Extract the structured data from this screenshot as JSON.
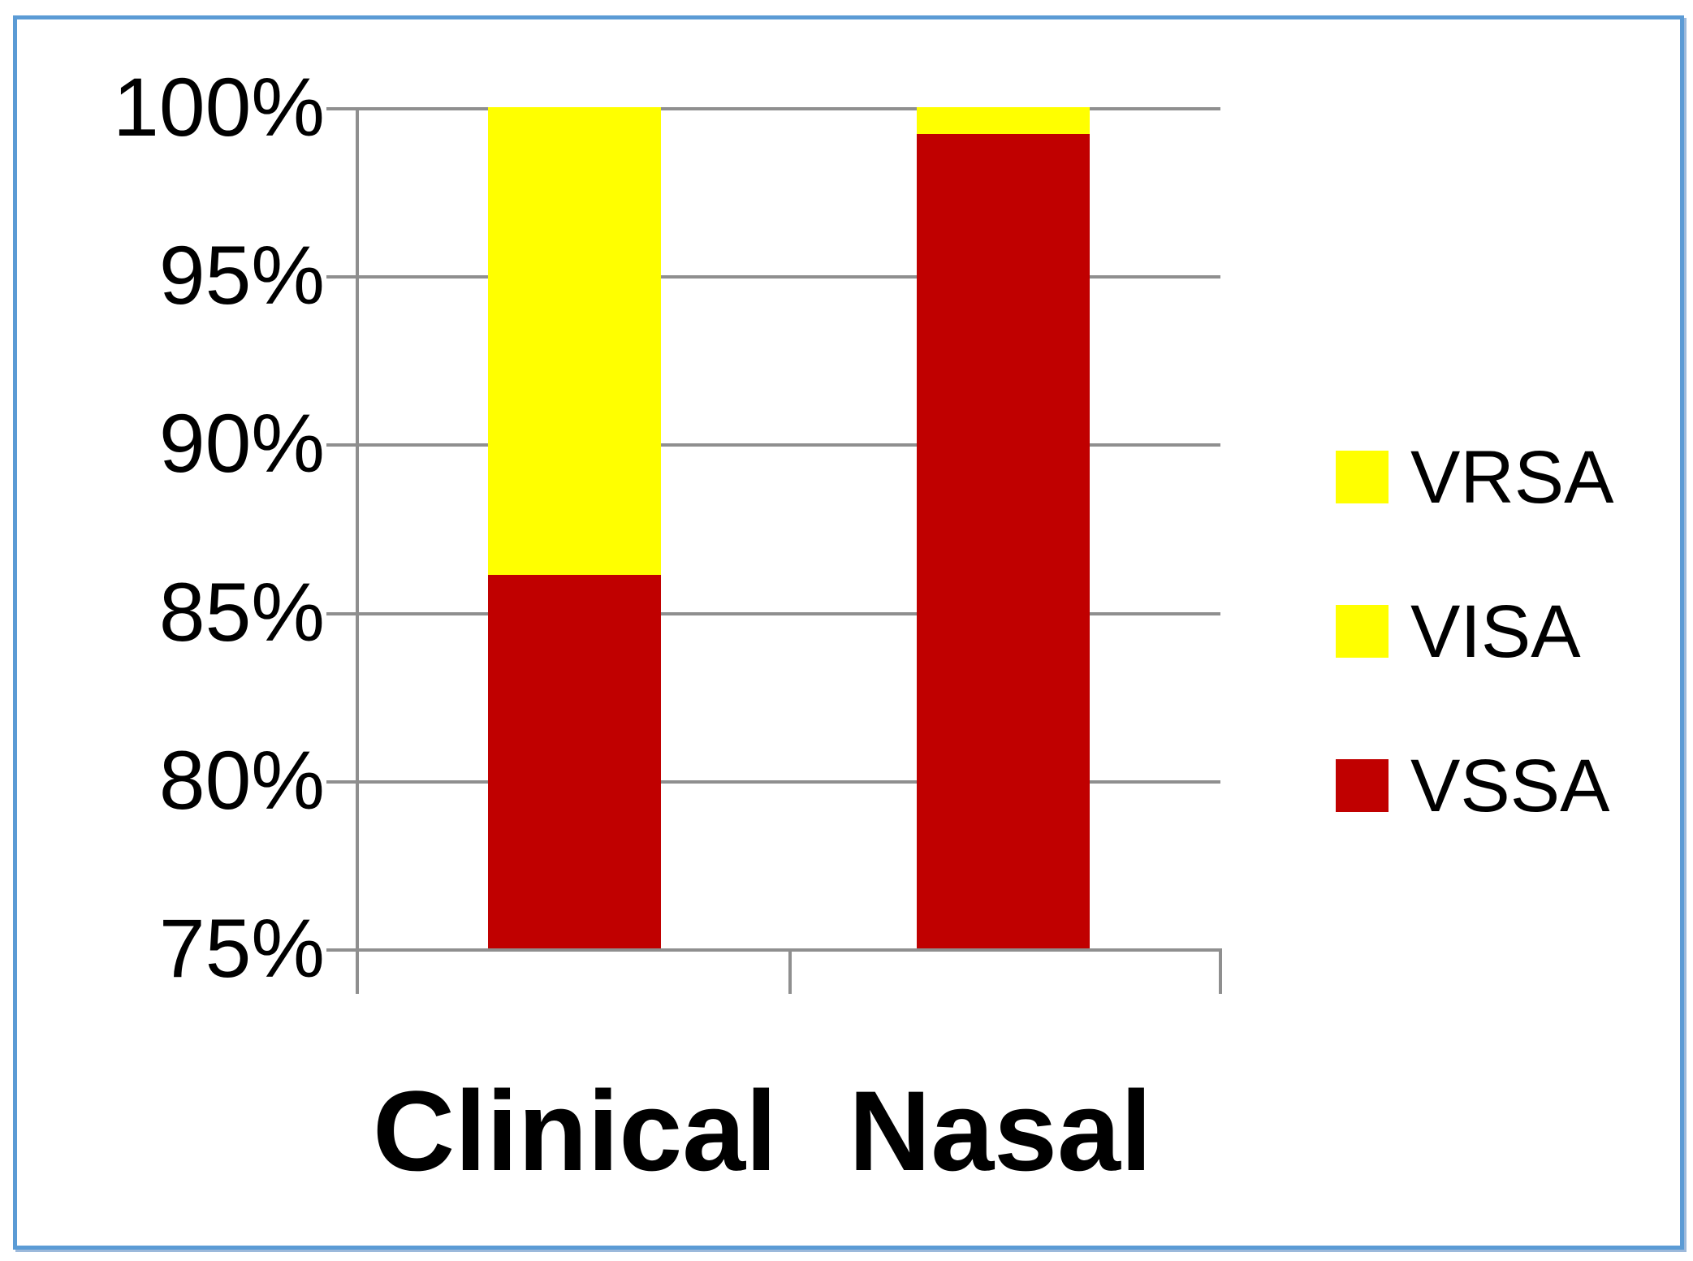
{
  "chart_data": {
    "type": "bar",
    "subtype": "100-percent-stacked-column",
    "categories": [
      "Clinical",
      "Nasal"
    ],
    "series": [
      {
        "name": "VSSA",
        "color": "#C00000",
        "values_pct": [
          86.1,
          99.2
        ]
      },
      {
        "name": "VISA/VRSA (yellow top, colors identical in legend)",
        "color": "#FFFF00",
        "values_pct": [
          13.9,
          0.8
        ]
      }
    ],
    "legend": {
      "position": "right",
      "items": [
        {
          "label": "VRSA",
          "color": "#FFFF00"
        },
        {
          "label": "VISA",
          "color": "#FFFF00"
        },
        {
          "label": "VSSA",
          "color": "#C00000"
        }
      ]
    },
    "y_axis": {
      "min": 75,
      "max": 100,
      "step": 5,
      "unit": "%",
      "tick_labels": [
        "100%",
        "95%",
        "90%",
        "85%",
        "80%",
        "75%"
      ]
    },
    "x_axis": {
      "labels": [
        "Clinical",
        "Nasal"
      ]
    },
    "grid": true,
    "colors": {
      "grid": "#8F8F8F",
      "frame": "#5B9BD5",
      "vssa_red": "#C00000",
      "visa_vrsa_yellow": "#FFFF00"
    }
  }
}
